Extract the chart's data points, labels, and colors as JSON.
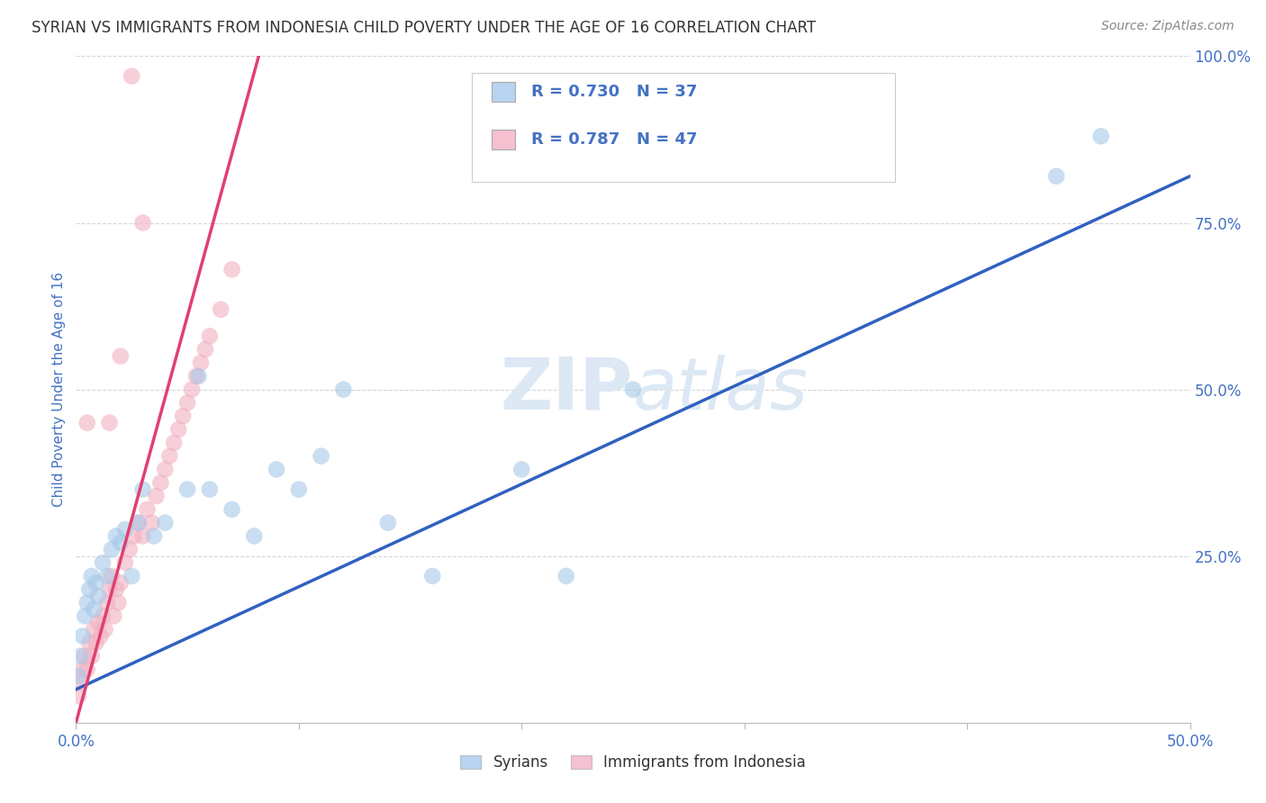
{
  "title": "SYRIAN VS IMMIGRANTS FROM INDONESIA CHILD POVERTY UNDER THE AGE OF 16 CORRELATION CHART",
  "source": "Source: ZipAtlas.com",
  "ylabel": "Child Poverty Under the Age of 16",
  "xlim": [
    0.0,
    0.5
  ],
  "ylim": [
    0.0,
    1.0
  ],
  "xtick_vals": [
    0.0,
    0.1,
    0.2,
    0.3,
    0.4,
    0.5
  ],
  "xticklabels": [
    "0.0%",
    "",
    "",
    "",
    "",
    "50.0%"
  ],
  "ytick_vals": [
    0.0,
    0.25,
    0.5,
    0.75,
    1.0
  ],
  "yticklabels": [
    "",
    "25.0%",
    "50.0%",
    "75.0%",
    "100.0%"
  ],
  "legend_bottom": [
    "Syrians",
    "Immigrants from Indonesia"
  ],
  "R_blue": 0.73,
  "N_blue": 37,
  "R_pink": 0.787,
  "N_pink": 47,
  "blue_scatter_color": "#a8c8e8",
  "pink_scatter_color": "#f0b0c0",
  "blue_line_color": "#3060c0",
  "pink_line_color": "#e04070",
  "legend_blue_fill": "#b8d4f0",
  "legend_pink_fill": "#f5c0d0",
  "watermark_color": "#dce8f4",
  "background_color": "#ffffff",
  "grid_color": "#cccccc",
  "title_color": "#333333",
  "source_color": "#888888",
  "tick_color": "#4472c4",
  "blue_scatter_x": [
    0.001,
    0.002,
    0.003,
    0.004,
    0.005,
    0.006,
    0.007,
    0.008,
    0.009,
    0.01,
    0.012,
    0.014,
    0.016,
    0.018,
    0.02,
    0.022,
    0.025,
    0.028,
    0.03,
    0.035,
    0.04,
    0.05,
    0.055,
    0.06,
    0.07,
    0.08,
    0.09,
    0.1,
    0.11,
    0.12,
    0.14,
    0.16,
    0.2,
    0.22,
    0.25,
    0.44,
    0.46
  ],
  "blue_scatter_y": [
    0.07,
    0.1,
    0.13,
    0.16,
    0.18,
    0.2,
    0.22,
    0.17,
    0.21,
    0.19,
    0.24,
    0.22,
    0.26,
    0.28,
    0.27,
    0.29,
    0.22,
    0.3,
    0.35,
    0.28,
    0.3,
    0.35,
    0.52,
    0.35,
    0.32,
    0.28,
    0.38,
    0.35,
    0.4,
    0.5,
    0.3,
    0.22,
    0.38,
    0.22,
    0.5,
    0.82,
    0.88
  ],
  "pink_scatter_x": [
    0.001,
    0.002,
    0.003,
    0.004,
    0.005,
    0.006,
    0.007,
    0.008,
    0.009,
    0.01,
    0.011,
    0.012,
    0.013,
    0.014,
    0.015,
    0.016,
    0.017,
    0.018,
    0.019,
    0.02,
    0.022,
    0.024,
    0.026,
    0.028,
    0.03,
    0.032,
    0.034,
    0.036,
    0.038,
    0.04,
    0.042,
    0.044,
    0.046,
    0.048,
    0.05,
    0.052,
    0.054,
    0.056,
    0.058,
    0.06,
    0.065,
    0.07,
    0.015,
    0.02,
    0.025,
    0.03,
    0.005
  ],
  "pink_scatter_y": [
    0.04,
    0.06,
    0.08,
    0.1,
    0.08,
    0.12,
    0.1,
    0.14,
    0.12,
    0.15,
    0.13,
    0.16,
    0.14,
    0.18,
    0.2,
    0.22,
    0.16,
    0.2,
    0.18,
    0.21,
    0.24,
    0.26,
    0.28,
    0.3,
    0.28,
    0.32,
    0.3,
    0.34,
    0.36,
    0.38,
    0.4,
    0.42,
    0.44,
    0.46,
    0.48,
    0.5,
    0.52,
    0.54,
    0.56,
    0.58,
    0.62,
    0.68,
    0.45,
    0.55,
    0.97,
    0.75,
    0.45
  ],
  "blue_line_x": [
    0.0,
    0.5
  ],
  "blue_line_y": [
    0.05,
    0.82
  ],
  "pink_line_x": [
    0.0,
    0.082
  ],
  "pink_line_y": [
    0.0,
    1.0
  ]
}
